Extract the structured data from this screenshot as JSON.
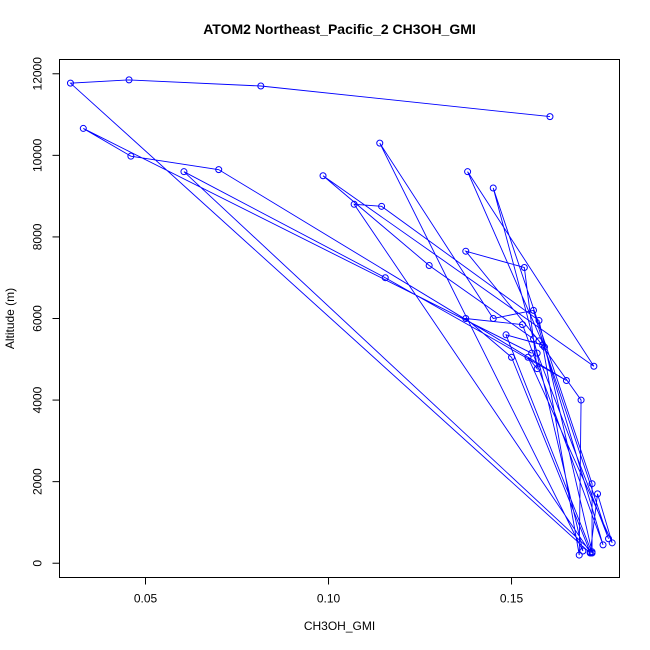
{
  "chart_data": {
    "type": "line",
    "title": "ATOM2 Northeast_Pacific_2 CH3OH_GMI",
    "xlabel": "CH3OH_GMI",
    "ylabel": "Altitude (m)",
    "xlim": [
      0.0265,
      0.1795
    ],
    "ylim": [
      -350,
      12350
    ],
    "x_ticks": [
      0.05,
      0.1,
      0.15
    ],
    "x_tick_labels": [
      "0.05",
      "0.10",
      "0.15"
    ],
    "y_ticks": [
      0,
      2000,
      4000,
      6000,
      8000,
      10000,
      12000
    ],
    "y_tick_labels": [
      "0",
      "2000",
      "4000",
      "6000",
      "8000",
      "10000",
      "12000"
    ],
    "grid": false,
    "color": "#0000ff",
    "marker": "open-circle",
    "series": [
      {
        "x": [
          0.1605,
          0.0815,
          0.0455,
          0.0295,
          0.1715,
          0.1735,
          0.1775,
          0.1545,
          0.157,
          0.1535,
          0.1375,
          0.1575,
          0.169,
          0.1685,
          0.1585,
          0.1485,
          0.172,
          0.172,
          0.145,
          0.157,
          0.1765,
          0.159,
          0.138,
          0.1725,
          0.0985,
          0.1275,
          0.156,
          0.1695,
          0.114,
          0.145,
          0.156,
          0.175,
          0.153,
          0.1375,
          0.15,
          0.1715,
          0.107,
          0.1145,
          0.1575,
          0.172,
          0.0605,
          0.1155,
          0.165,
          0.07,
          0.046,
          0.033,
          0.1555
        ],
        "y": [
          10950,
          11700,
          11850,
          11770,
          250,
          1700,
          500,
          5050,
          4770,
          7250,
          7650,
          5450,
          4000,
          200,
          5350,
          5600,
          250,
          1950,
          9200,
          5150,
          600,
          5300,
          9600,
          4830,
          9500,
          7300,
          5500,
          300,
          10300,
          6000,
          6200,
          450,
          5850,
          6000,
          5050,
          270,
          8800,
          8750,
          5950,
          280,
          9600,
          7000,
          4480,
          9650,
          9980,
          10660,
          5150
        ]
      }
    ]
  }
}
